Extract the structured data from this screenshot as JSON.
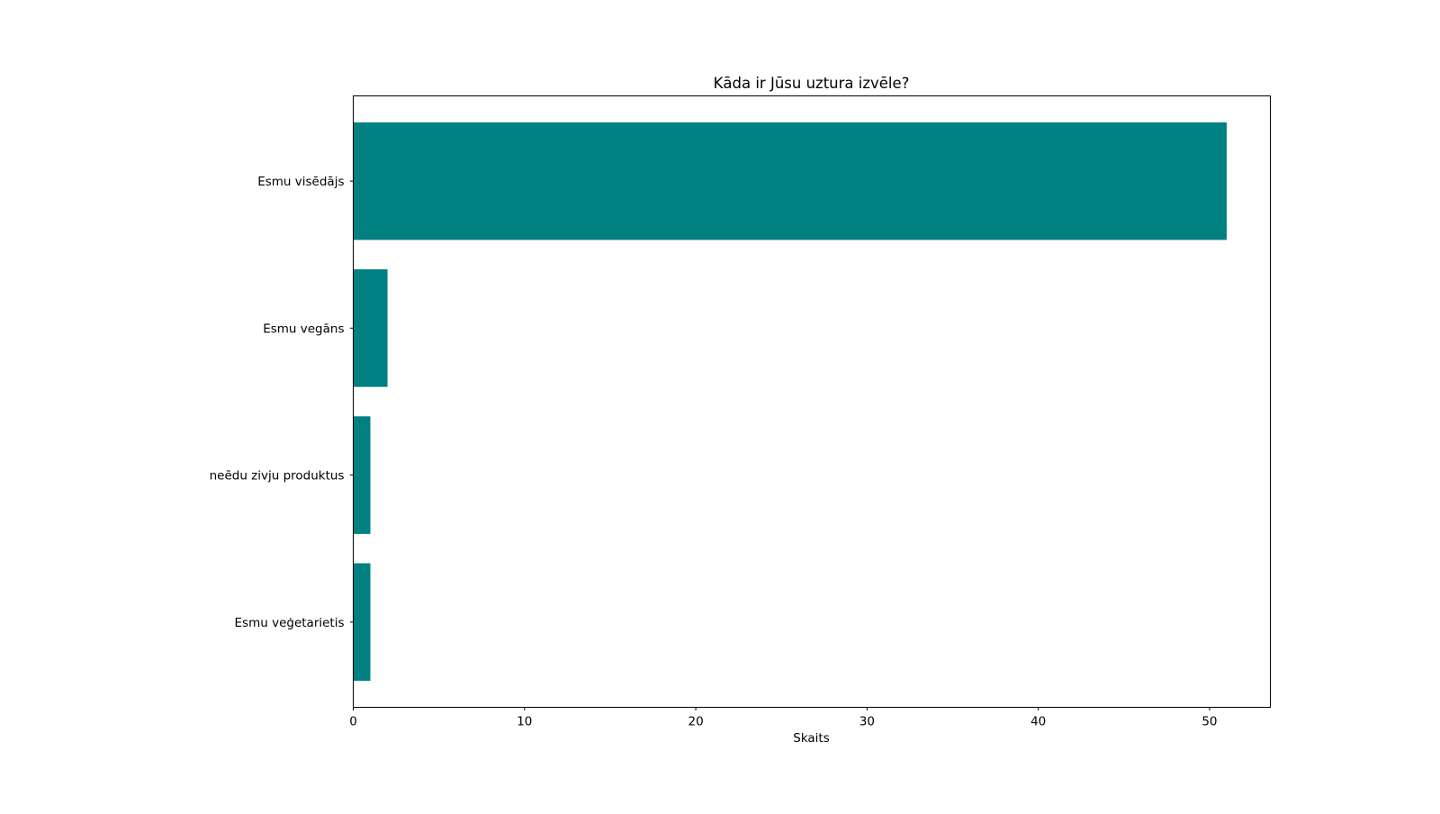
{
  "chart_data": {
    "type": "bar",
    "orientation": "horizontal",
    "title": "Kāda ir Jūsu uztura izvēle?",
    "xlabel": "Skaits",
    "ylabel": "",
    "categories": [
      "Esmu visēdājs",
      "Esmu vegāns",
      "neēdu zivju produktus",
      "Esmu veģetarietis"
    ],
    "values": [
      51,
      2,
      1,
      1
    ],
    "xlim": [
      0,
      53.55
    ],
    "xticks": [
      0,
      10,
      20,
      30,
      40,
      50
    ],
    "xtick_labels": [
      "0",
      "10",
      "20",
      "30",
      "40",
      "50"
    ],
    "grid": false,
    "color": "#008080"
  }
}
